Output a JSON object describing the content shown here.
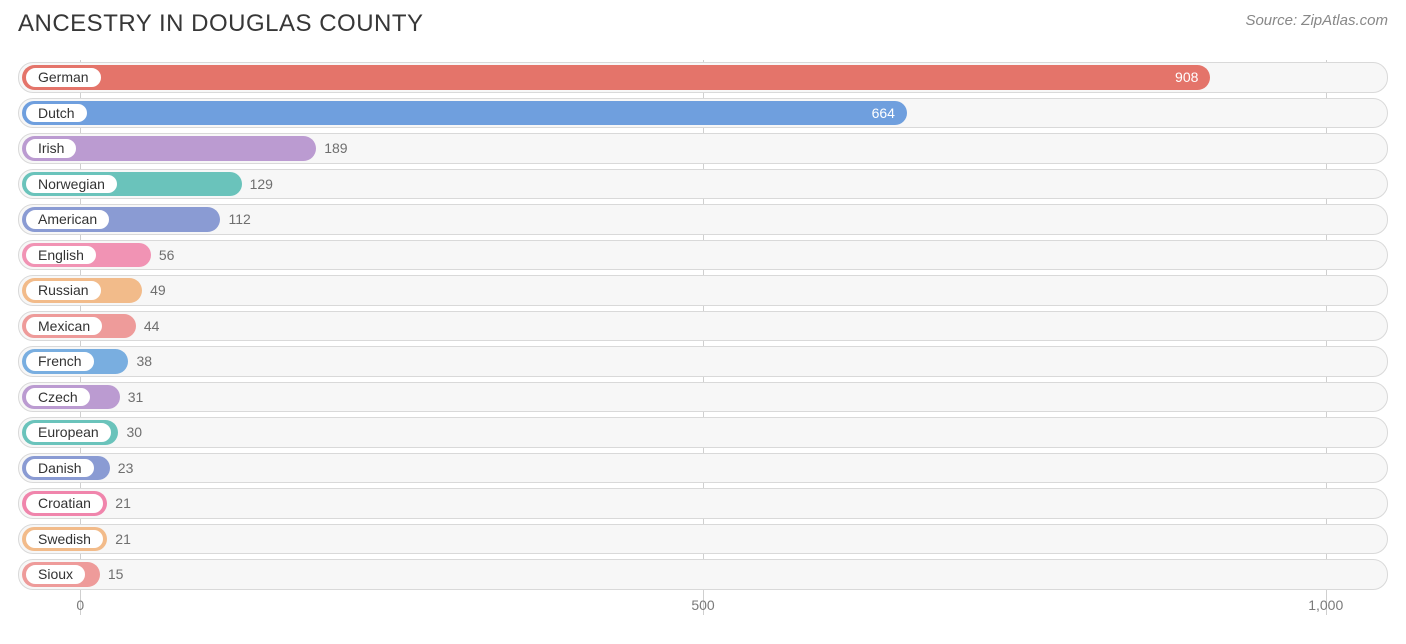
{
  "title": "ANCESTRY IN DOUGLAS COUNTY",
  "source": "Source: ZipAtlas.com",
  "chart": {
    "type": "bar-horizontal",
    "background_color": "#ffffff",
    "track_bg": "#f7f7f7",
    "track_border": "#d9d9d9",
    "grid_color": "#a8a8a8",
    "label_inside_threshold": 600,
    "x_min": -50,
    "x_max": 1050,
    "ticks": [
      {
        "value": 0,
        "label": "0"
      },
      {
        "value": 500,
        "label": "500"
      },
      {
        "value": 1000,
        "label": "1,000"
      }
    ],
    "rows": [
      {
        "label": "German",
        "value": 908,
        "color": "#e4746a"
      },
      {
        "label": "Dutch",
        "value": 664,
        "color": "#6f9fde"
      },
      {
        "label": "Irish",
        "value": 189,
        "color": "#bb9bd1"
      },
      {
        "label": "Norwegian",
        "value": 129,
        "color": "#6ac3bb"
      },
      {
        "label": "American",
        "value": 112,
        "color": "#8a9bd3"
      },
      {
        "label": "English",
        "value": 56,
        "color": "#f193b4"
      },
      {
        "label": "Russian",
        "value": 49,
        "color": "#f2bb8a"
      },
      {
        "label": "Mexican",
        "value": 44,
        "color": "#ee9b9a"
      },
      {
        "label": "French",
        "value": 38,
        "color": "#79aee0"
      },
      {
        "label": "Czech",
        "value": 31,
        "color": "#bb9bd1"
      },
      {
        "label": "European",
        "value": 30,
        "color": "#6ac3bb"
      },
      {
        "label": "Danish",
        "value": 23,
        "color": "#8a9bd3"
      },
      {
        "label": "Croatian",
        "value": 21,
        "color": "#f085ac"
      },
      {
        "label": "Swedish",
        "value": 21,
        "color": "#f2bb8a"
      },
      {
        "label": "Sioux",
        "value": 15,
        "color": "#ee9b9a"
      }
    ]
  }
}
